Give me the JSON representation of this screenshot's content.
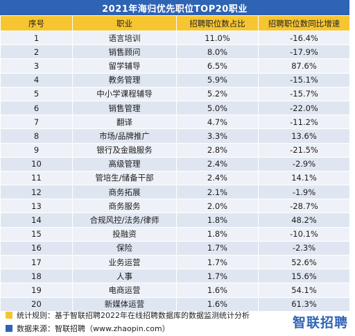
{
  "title": "2021年海归优先职位TOP20职业",
  "headers": [
    "序号",
    "职业",
    "招聘职位数占比",
    "招聘职位数同比增速"
  ],
  "rows": [
    [
      "1",
      "语言培训",
      "11.0%",
      "-16.4%"
    ],
    [
      "2",
      "销售顾问",
      "8.0%",
      "-17.9%"
    ],
    [
      "3",
      "留学辅导",
      "6.5%",
      "87.6%"
    ],
    [
      "4",
      "教务管理",
      "5.9%",
      "-15.1%"
    ],
    [
      "5",
      "中小学课程辅导",
      "5.2%",
      "-15.7%"
    ],
    [
      "6",
      "销售管理",
      "5.0%",
      "-22.0%"
    ],
    [
      "7",
      "翻译",
      "4.7%",
      "-11.2%"
    ],
    [
      "8",
      "市场/品牌推广",
      "3.3%",
      "13.6%"
    ],
    [
      "9",
      "银行及金融服务",
      "2.8%",
      "-21.5%"
    ],
    [
      "10",
      "高级管理",
      "2.4%",
      "-2.9%"
    ],
    [
      "11",
      "管培生/储备干部",
      "2.4%",
      "14.1%"
    ],
    [
      "12",
      "商务拓展",
      "2.1%",
      "-1.9%"
    ],
    [
      "13",
      "商务服务",
      "2.0%",
      "-28.7%"
    ],
    [
      "14",
      "合规风控/法务/律师",
      "1.8%",
      "48.2%"
    ],
    [
      "15",
      "投融资",
      "1.8%",
      "-10.1%"
    ],
    [
      "16",
      "保险",
      "1.7%",
      "-2.3%"
    ],
    [
      "17",
      "业务运营",
      "1.7%",
      "52.6%"
    ],
    [
      "18",
      "人事",
      "1.7%",
      "15.6%"
    ],
    [
      "19",
      "电商运营",
      "1.6%",
      "54.1%"
    ],
    [
      "20",
      "新媒体运营",
      "1.6%",
      "61.3%"
    ]
  ],
  "notes": {
    "rule": "统计规则：基于智联招聘2022年在线招聘数据库的数据监测统计分析",
    "source": "数据来源：智联招聘（www.zhaopin.com）"
  },
  "logo_text": "智联招聘",
  "colors": {
    "title_bg": "#2f63b4",
    "header_bg": "#f7c531",
    "row_light": "#eef2f8",
    "row_dark": "#dfe6f1"
  }
}
